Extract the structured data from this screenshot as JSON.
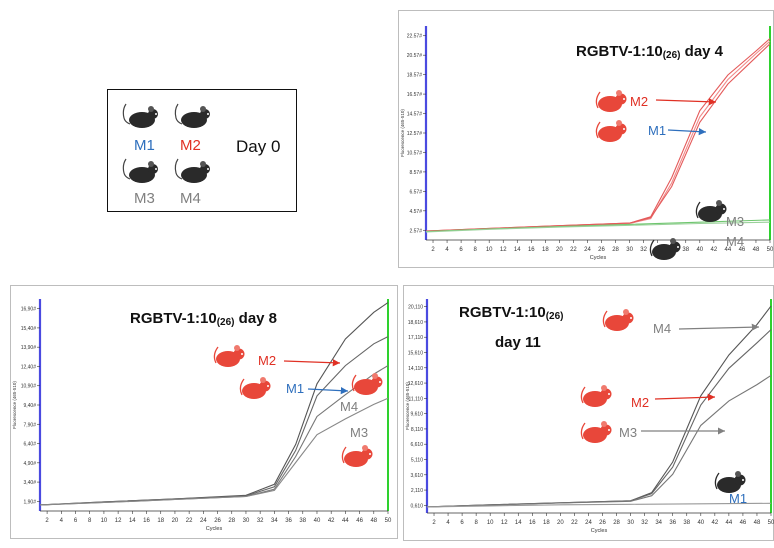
{
  "day0_box": {
    "title": "Day 0",
    "mice": [
      {
        "label": "M1",
        "color": "#2e6fbd"
      },
      {
        "label": "M2",
        "color": "#e03024"
      },
      {
        "label": "M3",
        "color": "#808080"
      },
      {
        "label": "M4",
        "color": "#808080"
      }
    ]
  },
  "colors": {
    "m1_blue": "#2e6fbd",
    "m2_red": "#e03024",
    "gray": "#808080",
    "red_mouse": "#e8473a",
    "black_mouse": "#2a2a2a",
    "axis_blue": "#4a4ae0",
    "axis_green": "#2ed12e"
  },
  "chart_data": [
    {
      "type": "line",
      "title_main": "RGBTV-1:10",
      "title_sub": "(26)",
      "title_tail": " day 4",
      "xlabel": "Cycles",
      "ylabel": "Fluorescence (465-510)",
      "xlim": [
        1,
        50
      ],
      "ylim": [
        0,
        24
      ],
      "x_ticks": [
        "2",
        "4",
        "6",
        "8",
        "10",
        "12",
        "14",
        "16",
        "18",
        "20",
        "22",
        "24",
        "26",
        "28",
        "30",
        "32",
        "34",
        "36",
        "38",
        "40",
        "42",
        "44",
        "46",
        "48",
        "50"
      ],
      "y_ticks": [
        "2.57#",
        "4.57#",
        "6.57#",
        "8.57#",
        "10.57#",
        "12.57#",
        "14.57#",
        "16.57#",
        "18.57#",
        "20.57#",
        "22.57#"
      ],
      "annotations": [
        {
          "label": "M2",
          "mouse": "red"
        },
        {
          "label": "M1",
          "mouse": "red"
        },
        {
          "label": "M3",
          "mouse": "black"
        },
        {
          "label": "M4",
          "mouse": "black"
        }
      ],
      "series": [
        {
          "color": "#e45a5a",
          "x": [
            1,
            10,
            20,
            30,
            33,
            36,
            40,
            44,
            48,
            50
          ],
          "y": [
            1.0,
            1.3,
            1.6,
            1.9,
            2.6,
            7,
            14.5,
            18.5,
            21.2,
            22.6
          ]
        },
        {
          "color": "#f08a8a",
          "x": [
            1,
            10,
            20,
            30,
            33,
            36,
            40,
            44,
            48,
            50
          ],
          "y": [
            1.0,
            1.25,
            1.55,
            1.85,
            2.4,
            6.4,
            13.8,
            18.0,
            20.9,
            22.3
          ]
        },
        {
          "color": "#e45a5a",
          "x": [
            1,
            10,
            20,
            30,
            33,
            36,
            40,
            44,
            48,
            50
          ],
          "y": [
            1.0,
            1.3,
            1.6,
            1.9,
            2.5,
            6.0,
            13.2,
            17.5,
            20.5,
            22.0
          ]
        },
        {
          "color": "#6fc66f",
          "x": [
            1,
            10,
            20,
            30,
            40,
            50
          ],
          "y": [
            0.95,
            1.25,
            1.5,
            1.75,
            2.0,
            2.25
          ]
        },
        {
          "color": "#9ad19a",
          "x": [
            1,
            10,
            20,
            30,
            40,
            50
          ],
          "y": [
            0.9,
            1.2,
            1.45,
            1.65,
            1.85,
            2.0
          ]
        }
      ]
    },
    {
      "type": "line",
      "title_main": "RGBTV-1:10",
      "title_sub": "(26)",
      "title_tail": " day 8",
      "xlabel": "Cycles",
      "ylabel": "Fluorescence (465-510)",
      "xlim": [
        1,
        50
      ],
      "ylim": [
        0,
        17.5
      ],
      "x_ticks": [
        "2",
        "4",
        "6",
        "8",
        "10",
        "12",
        "14",
        "16",
        "18",
        "20",
        "22",
        "24",
        "26",
        "28",
        "30",
        "32",
        "34",
        "36",
        "38",
        "40",
        "42",
        "44",
        "46",
        "48",
        "50"
      ],
      "y_ticks": [
        "1,90#",
        "3,40#",
        "4,90#",
        "6,40#",
        "7,90#",
        "9,40#",
        "10,90#",
        "12,40#",
        "13,90#",
        "15,40#",
        "16,90#"
      ],
      "annotations": [
        {
          "label": "M2",
          "mouse": "red"
        },
        {
          "label": "M1",
          "mouse": "red"
        },
        {
          "label": "M4",
          "mouse": "red"
        },
        {
          "label": "M3",
          "mouse": "red"
        }
      ],
      "series": [
        {
          "color": "#555555",
          "x": [
            1,
            10,
            20,
            30,
            34,
            37,
            40,
            44,
            48,
            50
          ],
          "y": [
            0.5,
            0.75,
            1.0,
            1.3,
            2.2,
            5.5,
            10.5,
            14.2,
            16.4,
            17.2
          ]
        },
        {
          "color": "#666666",
          "x": [
            1,
            10,
            20,
            30,
            34,
            37,
            40,
            44,
            48,
            50
          ],
          "y": [
            0.5,
            0.75,
            1.0,
            1.25,
            2.0,
            5.0,
            9.5,
            12.0,
            13.8,
            14.4
          ]
        },
        {
          "color": "#777777",
          "x": [
            1,
            10,
            20,
            30,
            34,
            37,
            40,
            44,
            48,
            50
          ],
          "y": [
            0.5,
            0.7,
            0.95,
            1.2,
            1.8,
            4.5,
            7.8,
            9.6,
            11.3,
            12.0
          ]
        },
        {
          "color": "#888888",
          "x": [
            1,
            10,
            20,
            30,
            34,
            37,
            40,
            44,
            48,
            50
          ],
          "y": [
            0.5,
            0.7,
            0.95,
            1.2,
            1.7,
            4.0,
            6.3,
            7.6,
            8.8,
            9.3
          ]
        }
      ]
    },
    {
      "type": "line",
      "title_main": "RGBTV-1:10",
      "title_sub": "(26)",
      "title_tail": "",
      "title_line2": "day 11",
      "xlabel": "Cycles",
      "ylabel": "Fluorescence (465-510)",
      "xlim": [
        1,
        50
      ],
      "ylim": [
        0,
        21
      ],
      "x_ticks": [
        "2",
        "4",
        "6",
        "8",
        "10",
        "12",
        "14",
        "16",
        "18",
        "20",
        "22",
        "24",
        "26",
        "28",
        "30",
        "32",
        "34",
        "36",
        "38",
        "40",
        "42",
        "44",
        "46",
        "48",
        "50"
      ],
      "y_ticks": [
        "0,610",
        "2,110",
        "3,610",
        "5,110",
        "6,610",
        "8,110",
        "9,610",
        "11,110",
        "12,610",
        "14,110",
        "15,610",
        "17,110",
        "18,610",
        "20,110"
      ],
      "annotations": [
        {
          "label": "M4",
          "mouse": "red"
        },
        {
          "label": "M2",
          "mouse": "red"
        },
        {
          "label": "M3",
          "mouse": "red"
        },
        {
          "label": "M1",
          "mouse": "black"
        }
      ],
      "series": [
        {
          "color": "#555555",
          "x": [
            1,
            10,
            20,
            30,
            33,
            36,
            40,
            44,
            48,
            50
          ],
          "y": [
            0.6,
            0.8,
            1.0,
            1.2,
            2.0,
            5.0,
            11.5,
            15.5,
            18.5,
            20.3
          ]
        },
        {
          "color": "#666666",
          "x": [
            1,
            10,
            20,
            30,
            33,
            36,
            40,
            44,
            48,
            50
          ],
          "y": [
            0.6,
            0.8,
            1.0,
            1.2,
            1.9,
            4.5,
            10.6,
            14.2,
            16.7,
            18.0
          ]
        },
        {
          "color": "#777777",
          "x": [
            1,
            10,
            20,
            30,
            33,
            36,
            40,
            44,
            48,
            50
          ],
          "y": [
            0.6,
            0.78,
            0.98,
            1.15,
            1.7,
            3.8,
            8.6,
            11.0,
            12.6,
            13.5
          ]
        },
        {
          "color": "#999999",
          "x": [
            1,
            10,
            20,
            30,
            40,
            50
          ],
          "y": [
            0.6,
            0.7,
            0.8,
            0.85,
            0.9,
            0.95
          ]
        }
      ]
    }
  ]
}
